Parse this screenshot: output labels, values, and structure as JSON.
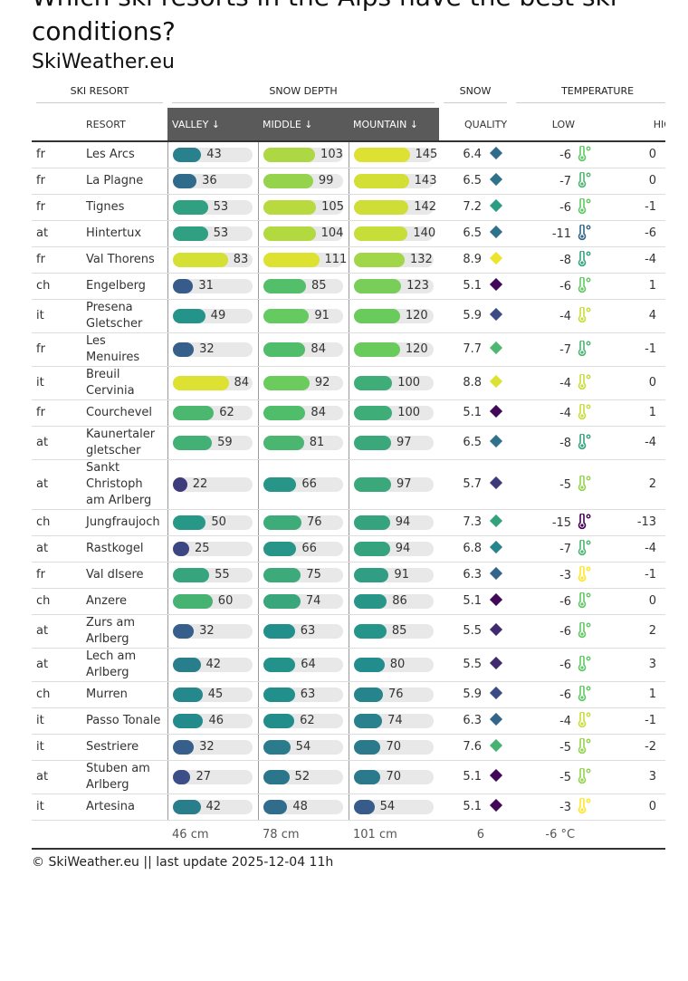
{
  "header": {
    "title": "Which ski resorts in the Alps have the best ski conditions?",
    "subtitle": "SkiWeather.eu"
  },
  "table": {
    "group_headers": [
      "SKI RESORT",
      "SNOW DEPTH",
      "SNOW",
      "TEMPERATURE"
    ],
    "columns": [
      "RESORT",
      "VALLEY ↓",
      "MIDDLE ↓",
      "MOUNTAIN ↓",
      "QUALITY",
      "LOW",
      "HIGH"
    ],
    "rows": [
      [
        "fr",
        "Les Arcs",
        43,
        103,
        145,
        6.4,
        -6,
        0
      ],
      [
        "fr",
        "La Plagne",
        36,
        99,
        143,
        6.5,
        -7,
        0
      ],
      [
        "fr",
        "Tignes",
        53,
        105,
        142,
        7.2,
        -6,
        -1
      ],
      [
        "at",
        "Hintertux",
        53,
        104,
        140,
        6.5,
        -11,
        -6
      ],
      [
        "fr",
        "Val Thorens",
        83,
        111,
        132,
        8.9,
        -8,
        -4
      ],
      [
        "ch",
        "Engelberg",
        31,
        85,
        123,
        5.1,
        -6,
        1
      ],
      [
        "it",
        "Presena Gletscher",
        49,
        91,
        120,
        5.9,
        -4,
        4
      ],
      [
        "fr",
        "Les Menuires",
        32,
        84,
        120,
        7.7,
        -7,
        -1
      ],
      [
        "it",
        "Breuil Cervinia",
        84,
        92,
        100,
        8.8,
        -4,
        0
      ],
      [
        "fr",
        "Courchevel",
        62,
        84,
        100,
        5.1,
        -4,
        1
      ],
      [
        "at",
        "Kaunertaler gletscher",
        59,
        81,
        97,
        6.5,
        -8,
        -4
      ],
      [
        "at",
        "Sankt Christoph am Arlberg",
        22,
        66,
        97,
        5.7,
        -5,
        2
      ],
      [
        "ch",
        "Jungfraujoch",
        50,
        76,
        94,
        7.3,
        -15,
        -13
      ],
      [
        "at",
        "Rastkogel",
        25,
        66,
        94,
        6.8,
        -7,
        -4
      ],
      [
        "fr",
        "Val dIsere",
        55,
        75,
        91,
        6.3,
        -3,
        -1
      ],
      [
        "ch",
        "Anzere",
        60,
        74,
        86,
        5.1,
        -6,
        0
      ],
      [
        "at",
        "Zurs am Arlberg",
        32,
        63,
        85,
        5.5,
        -6,
        2
      ],
      [
        "at",
        "Lech am Arlberg",
        42,
        64,
        80,
        5.5,
        -6,
        3
      ],
      [
        "ch",
        "Murren",
        45,
        63,
        76,
        5.9,
        -6,
        1
      ],
      [
        "it",
        "Passo Tonale",
        46,
        62,
        74,
        6.3,
        -4,
        -1
      ],
      [
        "it",
        "Sestriere",
        32,
        54,
        70,
        7.6,
        -5,
        -2
      ],
      [
        "at",
        "Stuben am Arlberg",
        27,
        52,
        70,
        5.1,
        -5,
        3
      ],
      [
        "it",
        "Artesina",
        42,
        48,
        54,
        5.1,
        -3,
        0
      ]
    ],
    "footer": [
      "46 cm",
      "78 cm",
      "101 cm",
      "6",
      "-6 °C"
    ]
  },
  "footnote": "© SkiWeather.eu || last update 2025-12-04 11h"
}
